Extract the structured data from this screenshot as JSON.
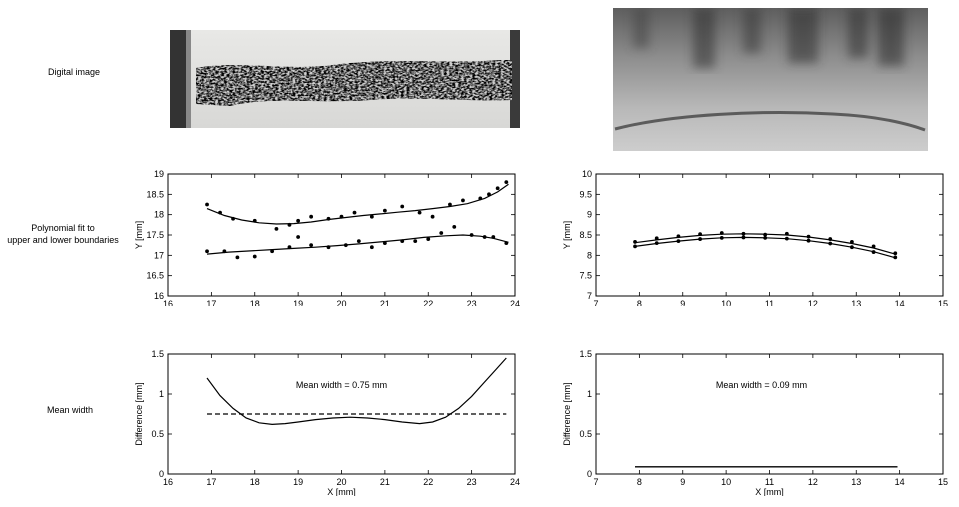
{
  "row_labels": {
    "row1": "Digital image",
    "row2_line1": "Polynomial fit to",
    "row2_line2": "upper and lower boundaries",
    "row3": "Mean width"
  },
  "chart_data": [
    {
      "type": "scatter",
      "xlabel": "X [mm]",
      "ylabel": "Y [mm]",
      "xlim": [
        16,
        24
      ],
      "ylim": [
        16,
        19
      ],
      "xticks": [
        "16",
        "17",
        "18",
        "19",
        "20",
        "21",
        "22",
        "23",
        "24"
      ],
      "yticks": [
        "16",
        "16.5",
        "17",
        "17.5",
        "18",
        "18.5",
        "19"
      ],
      "series": [
        {
          "role": "upper_points",
          "x": [
            16.9,
            17.2,
            17.5,
            18.0,
            18.5,
            18.8,
            19.0,
            19.3,
            19.7,
            20.0,
            20.3,
            20.7,
            21.0,
            21.4,
            21.8,
            22.1,
            22.5,
            22.8,
            23.2,
            23.4,
            23.6,
            23.8
          ],
          "y": [
            18.25,
            18.05,
            17.9,
            17.85,
            17.65,
            17.75,
            17.85,
            17.95,
            17.9,
            17.95,
            18.05,
            17.95,
            18.1,
            18.2,
            18.05,
            17.95,
            18.25,
            18.35,
            18.4,
            18.5,
            18.65,
            18.8
          ]
        },
        {
          "role": "upper_fit",
          "x": [
            16.9,
            17.3,
            17.7,
            18.1,
            18.5,
            18.9,
            19.3,
            19.7,
            20.1,
            20.5,
            20.9,
            21.3,
            21.7,
            22.1,
            22.5,
            22.9,
            23.3,
            23.6,
            23.85
          ],
          "y": [
            18.15,
            17.98,
            17.87,
            17.8,
            17.77,
            17.78,
            17.82,
            17.88,
            17.93,
            17.98,
            18.02,
            18.06,
            18.1,
            18.15,
            18.2,
            18.27,
            18.4,
            18.56,
            18.75
          ]
        },
        {
          "role": "lower_points",
          "x": [
            16.9,
            17.3,
            17.6,
            18.0,
            18.4,
            18.8,
            19.0,
            19.3,
            19.7,
            20.1,
            20.4,
            20.7,
            21.0,
            21.4,
            21.7,
            22.0,
            22.3,
            22.6,
            23.0,
            23.3,
            23.5,
            23.8
          ],
          "y": [
            17.1,
            17.1,
            16.95,
            16.97,
            17.1,
            17.2,
            17.45,
            17.25,
            17.2,
            17.25,
            17.35,
            17.2,
            17.3,
            17.35,
            17.35,
            17.4,
            17.55,
            17.7,
            17.5,
            17.45,
            17.45,
            17.3
          ]
        },
        {
          "role": "lower_fit",
          "x": [
            16.9,
            17.4,
            17.9,
            18.4,
            18.9,
            19.4,
            19.9,
            20.4,
            20.9,
            21.4,
            21.9,
            22.4,
            22.8,
            23.2,
            23.5,
            23.85
          ],
          "y": [
            17.03,
            17.08,
            17.11,
            17.14,
            17.17,
            17.2,
            17.24,
            17.28,
            17.33,
            17.38,
            17.44,
            17.48,
            17.5,
            17.47,
            17.42,
            17.32
          ]
        }
      ]
    },
    {
      "type": "scatter",
      "xlabel": "X [mm]",
      "ylabel": "Y [mm]",
      "xlim": [
        7,
        15
      ],
      "ylim": [
        7,
        10
      ],
      "xticks": [
        "7",
        "8",
        "9",
        "10",
        "11",
        "12",
        "13",
        "14",
        "15"
      ],
      "yticks": [
        "7",
        "7.5",
        "8",
        "8.5",
        "9",
        "9.5",
        "10"
      ],
      "series": [
        {
          "role": "upper_points",
          "x": [
            7.9,
            8.4,
            8.9,
            9.4,
            9.9,
            10.4,
            10.9,
            11.4,
            11.9,
            12.4,
            12.9,
            13.4,
            13.9
          ],
          "y": [
            8.33,
            8.42,
            8.47,
            8.52,
            8.55,
            8.53,
            8.51,
            8.53,
            8.46,
            8.4,
            8.33,
            8.22,
            8.05
          ]
        },
        {
          "role": "upper_fit",
          "x": [
            7.9,
            8.4,
            8.9,
            9.4,
            9.9,
            10.4,
            10.9,
            11.4,
            11.9,
            12.4,
            12.9,
            13.4,
            13.9
          ],
          "y": [
            8.31,
            8.38,
            8.44,
            8.49,
            8.52,
            8.53,
            8.52,
            8.5,
            8.45,
            8.38,
            8.29,
            8.18,
            8.03
          ]
        },
        {
          "role": "lower_points",
          "x": [
            7.9,
            8.4,
            8.9,
            9.4,
            9.9,
            10.4,
            10.9,
            11.4,
            11.9,
            12.4,
            12.9,
            13.4,
            13.9
          ],
          "y": [
            8.22,
            8.3,
            8.35,
            8.4,
            8.43,
            8.44,
            8.43,
            8.41,
            8.36,
            8.29,
            8.2,
            8.08,
            7.95
          ]
        },
        {
          "role": "lower_fit",
          "x": [
            7.9,
            8.4,
            8.9,
            9.4,
            9.9,
            10.4,
            10.9,
            11.4,
            11.9,
            12.4,
            12.9,
            13.4,
            13.9
          ],
          "y": [
            8.22,
            8.29,
            8.35,
            8.4,
            8.43,
            8.44,
            8.43,
            8.41,
            8.36,
            8.29,
            8.2,
            8.09,
            7.94
          ]
        }
      ]
    },
    {
      "type": "line",
      "xlabel": "X [mm]",
      "ylabel": "Difference [mm]",
      "xlim": [
        16,
        24
      ],
      "ylim": [
        0,
        1.5
      ],
      "xticks": [
        "16",
        "17",
        "18",
        "19",
        "20",
        "21",
        "22",
        "23",
        "24"
      ],
      "yticks": [
        "0",
        "0.5",
        "1",
        "1.5"
      ],
      "annotation": "Mean width = 0.75 mm",
      "series": [
        {
          "role": "difference",
          "x": [
            16.9,
            17.2,
            17.5,
            17.8,
            18.1,
            18.4,
            18.7,
            19.0,
            19.4,
            19.8,
            20.2,
            20.6,
            21.0,
            21.4,
            21.8,
            22.1,
            22.4,
            22.7,
            23.0,
            23.3,
            23.55,
            23.8
          ],
          "y": [
            1.2,
            0.98,
            0.82,
            0.7,
            0.64,
            0.62,
            0.63,
            0.65,
            0.68,
            0.7,
            0.71,
            0.7,
            0.68,
            0.65,
            0.63,
            0.65,
            0.71,
            0.82,
            0.97,
            1.15,
            1.3,
            1.45
          ]
        },
        {
          "role": "mean",
          "x": [
            16.9,
            23.8
          ],
          "y": [
            0.75,
            0.75
          ]
        }
      ]
    },
    {
      "type": "line",
      "xlabel": "X [mm]",
      "ylabel": "Difference [mm]",
      "xlim": [
        7,
        15
      ],
      "ylim": [
        0,
        1.5
      ],
      "xticks": [
        "7",
        "8",
        "9",
        "10",
        "11",
        "12",
        "13",
        "14",
        "15"
      ],
      "yticks": [
        "0",
        "0.5",
        "1",
        "1.5"
      ],
      "annotation": "Mean width = 0.09 mm",
      "series": [
        {
          "role": "difference",
          "x": [
            7.9,
            13.95
          ],
          "y": [
            0.09,
            0.09
          ]
        }
      ]
    }
  ]
}
